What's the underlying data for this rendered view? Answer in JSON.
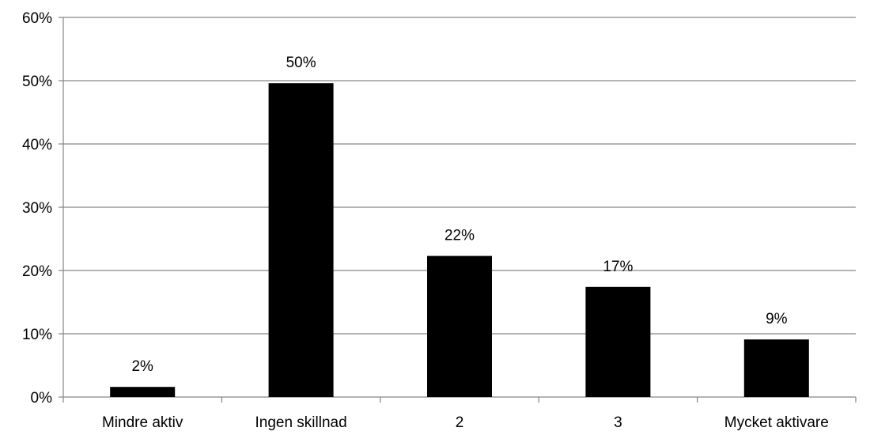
{
  "chart_data": {
    "type": "bar",
    "categories": [
      "Mindre aktiv",
      "Ingen skillnad",
      "2",
      "3",
      "Mycket aktivare"
    ],
    "series": [
      {
        "values": [
          1.6,
          49.6,
          22.3,
          17.4,
          9.1
        ]
      }
    ],
    "data_labels": [
      "2%",
      "50%",
      "22%",
      "17%",
      "9%"
    ],
    "y_ticks": [
      "0%",
      "10%",
      "20%",
      "30%",
      "40%",
      "50%",
      "60%"
    ],
    "ylim": [
      0,
      60
    ],
    "y_step": 10,
    "grid": true,
    "legend": "none",
    "colors": {
      "bar": "#000000",
      "grid": "#868686"
    }
  }
}
